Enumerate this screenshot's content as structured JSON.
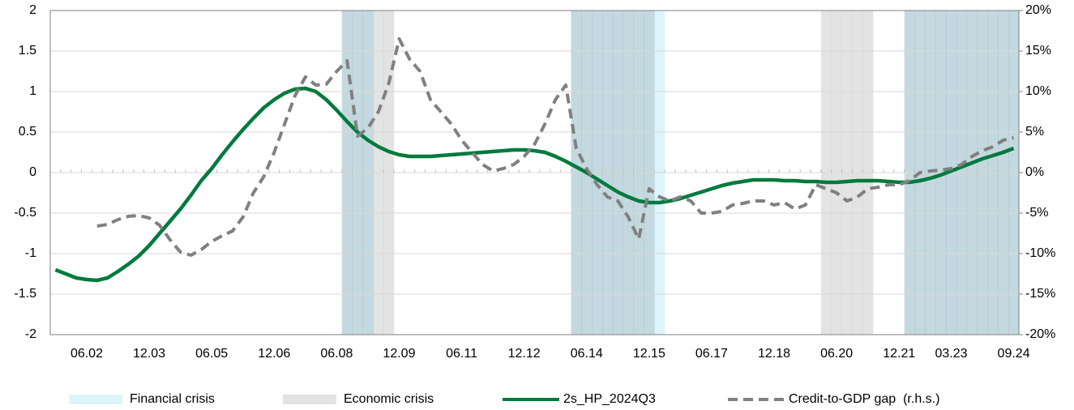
{
  "chart_data": {
    "type": "line",
    "categories": [
      null,
      null,
      null,
      "06.02",
      null,
      null,
      null,
      null,
      null,
      "12.03",
      null,
      null,
      null,
      null,
      null,
      "06.05",
      null,
      null,
      null,
      null,
      null,
      "12.06",
      null,
      null,
      null,
      null,
      null,
      "06.08",
      null,
      null,
      null,
      null,
      null,
      "12.09",
      null,
      null,
      null,
      null,
      null,
      "06.11",
      null,
      null,
      null,
      null,
      null,
      "12.12",
      null,
      null,
      null,
      null,
      null,
      "06.14",
      null,
      null,
      null,
      null,
      null,
      "12.15",
      null,
      null,
      null,
      null,
      null,
      "06.17",
      null,
      null,
      null,
      null,
      null,
      "12.18",
      null,
      null,
      null,
      null,
      null,
      "06.20",
      null,
      null,
      null,
      null,
      null,
      "12.21",
      null,
      null,
      null,
      null,
      "03.23",
      null,
      null,
      null,
      null,
      null,
      "09.24"
    ],
    "ylim": [
      -2,
      2
    ],
    "yticks": [
      -2,
      -1.5,
      -1,
      -0.5,
      0,
      0.5,
      1,
      1.5,
      2
    ],
    "y2lim": [
      -20,
      20
    ],
    "y2ticks": [
      {
        "value": -20,
        "label": "-20%"
      },
      {
        "value": -15,
        "label": "-15%"
      },
      {
        "value": -10,
        "label": "-10%"
      },
      {
        "value": -5,
        "label": "-5%"
      },
      {
        "value": 0,
        "label": "0%"
      },
      {
        "value": 5,
        "label": "5%"
      },
      {
        "value": 10,
        "label": "10%"
      },
      {
        "value": 15,
        "label": "15%"
      },
      {
        "value": 20,
        "label": "20%"
      }
    ],
    "grid": true,
    "legend": "bottom",
    "series": [
      {
        "name": "Financial crisis",
        "type": "band",
        "color": "#ddf4fb",
        "values": [
          0,
          0,
          0,
          0,
          0,
          0,
          0,
          0,
          0,
          0,
          0,
          0,
          0,
          0,
          0,
          0,
          0,
          0,
          0,
          0,
          0,
          0,
          0,
          0,
          0,
          0,
          0,
          0,
          1,
          1,
          1,
          0,
          0,
          0,
          0,
          0,
          0,
          0,
          0,
          0,
          0,
          0,
          0,
          0,
          0,
          0,
          0,
          0,
          0,
          0,
          1,
          1,
          1,
          1,
          1,
          1,
          1,
          1,
          1,
          0,
          0,
          0,
          0,
          0,
          0,
          0,
          0,
          0,
          0,
          0,
          0,
          0,
          0,
          0,
          0,
          0,
          0,
          0,
          0,
          0,
          0,
          0,
          1,
          1,
          1,
          1,
          1,
          1,
          1,
          1,
          1,
          1,
          1
        ]
      },
      {
        "name": "Economic crisis",
        "type": "band",
        "color": "#e3e3e3",
        "values": [
          0,
          0,
          0,
          0,
          0,
          0,
          0,
          0,
          0,
          0,
          0,
          0,
          0,
          0,
          0,
          0,
          0,
          0,
          0,
          0,
          0,
          0,
          0,
          0,
          0,
          0,
          0,
          0,
          1,
          1,
          1,
          1,
          1,
          0,
          0,
          0,
          0,
          0,
          0,
          0,
          0,
          0,
          0,
          0,
          0,
          0,
          0,
          0,
          0,
          0,
          1,
          1,
          1,
          1,
          1,
          1,
          1,
          1,
          0,
          0,
          0,
          0,
          0,
          0,
          0,
          0,
          0,
          0,
          0,
          0,
          0,
          0,
          0,
          0,
          1,
          1,
          1,
          1,
          1,
          0,
          0,
          0,
          1,
          1,
          1,
          1,
          1,
          1,
          1,
          1,
          1,
          1,
          1
        ]
      },
      {
        "name": "2s_HP_2024Q3",
        "type": "line",
        "color": "#007a3d",
        "dashed": false,
        "values": [
          -1.2,
          -1.25,
          -1.3,
          -1.32,
          -1.33,
          -1.3,
          -1.22,
          -1.13,
          -1.03,
          -0.9,
          -0.75,
          -0.6,
          -0.45,
          -0.28,
          -0.1,
          0.05,
          0.22,
          0.38,
          0.53,
          0.67,
          0.8,
          0.9,
          0.98,
          1.03,
          1.04,
          1.0,
          0.9,
          0.77,
          0.63,
          0.5,
          0.4,
          0.32,
          0.26,
          0.22,
          0.2,
          0.2,
          0.2,
          0.21,
          0.22,
          0.23,
          0.24,
          0.25,
          0.26,
          0.27,
          0.28,
          0.28,
          0.27,
          0.25,
          0.2,
          0.14,
          0.07,
          0,
          -0.08,
          -0.16,
          -0.24,
          -0.3,
          -0.35,
          -0.37,
          -0.37,
          -0.35,
          -0.32,
          -0.28,
          -0.24,
          -0.2,
          -0.16,
          -0.13,
          -0.11,
          -0.09,
          -0.09,
          -0.09,
          -0.1,
          -0.1,
          -0.11,
          -0.11,
          -0.12,
          -0.12,
          -0.11,
          -0.1,
          -0.1,
          -0.1,
          -0.11,
          -0.12,
          -0.12,
          -0.1,
          -0.07,
          -0.03,
          0.02,
          0.07,
          0.12,
          0.17,
          0.21,
          0.25,
          0.3
        ]
      },
      {
        "name": "Credit-to-GDP gap  (r.h.s.)",
        "type": "line",
        "axis": "y2",
        "color": "#808080",
        "dashed": true,
        "values": [
          null,
          null,
          null,
          null,
          -6.6,
          -6.4,
          -5.8,
          -5.4,
          -5.3,
          -5.6,
          -6.5,
          -8.3,
          -9.8,
          -10.2,
          -9.5,
          -8.5,
          -7.8,
          -7.2,
          -5.5,
          -2.5,
          -0.5,
          2.5,
          6,
          9.5,
          11.8,
          10.8,
          10.9,
          12.5,
          13.8,
          4.5,
          5.5,
          7.5,
          11,
          16.5,
          14,
          12.5,
          9,
          7.5,
          6,
          4,
          2.5,
          1,
          0.2,
          0.5,
          1,
          2,
          3.5,
          6,
          9,
          10.8,
          3,
          0.5,
          -1.5,
          -3,
          -3.5,
          -5.5,
          -8.2,
          -2,
          -3,
          -3.5,
          -3,
          -3.5,
          -5,
          -5,
          -4.8,
          -4,
          -3.8,
          -3.5,
          -3.5,
          -4,
          -3.7,
          -4.5,
          -4,
          -1.5,
          -2,
          -2.5,
          -3.5,
          -3,
          -2,
          -1.8,
          -1.5,
          -1.5,
          -1,
          0,
          0.2,
          0.3,
          0.5,
          1,
          2,
          2.7,
          3.2,
          4,
          4.3
        ]
      }
    ]
  }
}
